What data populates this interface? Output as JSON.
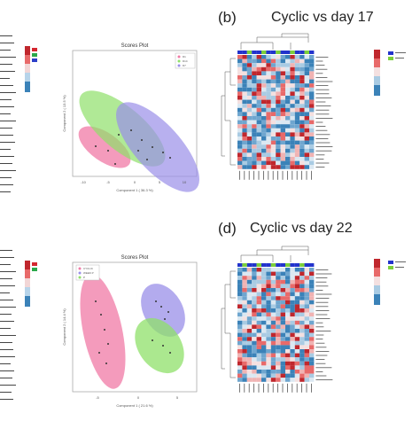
{
  "panels": {
    "b": {
      "label": "(b)",
      "title": "Cyclic vs day 17"
    },
    "d": {
      "label": "(d)",
      "title": "Cyclic vs day 22"
    }
  },
  "scores_plot_1": {
    "title": "Scores Plot",
    "xlabel": "Component 1 ( 36.3 %)",
    "ylabel": "Component 2 ( 13.5 %)",
    "legend": [
      "D1",
      "D14",
      "D7"
    ],
    "xticks": [
      "-10",
      "-5",
      "0",
      "5",
      "10"
    ]
  },
  "scores_plot_2": {
    "title": "Scores Plot",
    "xlabel": "Component 1 ( 21.6 %)",
    "ylabel": "Component 2 ( 14.4 %)",
    "legend": [
      "CYCLIC",
      "WEEK P",
      "P"
    ],
    "xticks": [
      "-5",
      "0",
      "5"
    ]
  },
  "colors": {
    "pink": "#f07aa6",
    "green": "#8fe06a",
    "purple": "#9a8fe8",
    "heat_red": "#c0272d",
    "heat_blue": "#3b82b8",
    "top_blue": "#2233cc",
    "top_green": "#7ccf3a"
  }
}
